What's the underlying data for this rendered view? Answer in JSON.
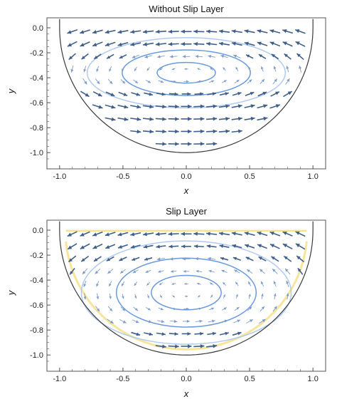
{
  "chart_data": [
    {
      "type": "vector-field",
      "title": "Without Slip Layer",
      "xlabel": "x",
      "ylabel": "y",
      "xlim": [
        -1.1,
        1.1
      ],
      "ylim": [
        -1.13,
        0.08
      ],
      "xticks": [
        -1.0,
        -0.5,
        0.0,
        0.5,
        1.0
      ],
      "xtick_labels": [
        "-1.0",
        "-0.5",
        "0.0",
        "0.5",
        "1.0"
      ],
      "yticks": [
        0.0,
        -0.2,
        -0.4,
        -0.6,
        -0.8,
        -1.0
      ],
      "ytick_labels": [
        "0.0",
        "-0.2",
        "-0.4",
        "-0.6",
        "-0.8",
        "-1.0"
      ],
      "boundary": "semicircle x^2 + y^2 = 1, y <= 0",
      "vortex_center": [
        0.0,
        -0.36
      ],
      "streamlines": [
        0.25,
        0.55,
        0.85
      ],
      "slip_layer": false
    },
    {
      "type": "vector-field",
      "title": "Slip Layer",
      "xlabel": "x",
      "ylabel": "y",
      "xlim": [
        -1.1,
        1.1
      ],
      "ylim": [
        -1.13,
        0.08
      ],
      "xticks": [
        -1.0,
        -0.5,
        0.0,
        0.5,
        1.0
      ],
      "xtick_labels": [
        "-1.0",
        "-0.5",
        "0.0",
        "0.5",
        "1.0"
      ],
      "yticks": [
        0.0,
        -0.2,
        -0.4,
        -0.6,
        -0.8,
        -1.0
      ],
      "ytick_labels": [
        "0.0",
        "-0.2",
        "-0.4",
        "-0.6",
        "-0.8",
        "-1.0"
      ],
      "boundary": "semicircle x^2 + y^2 = 1, y <= 0",
      "vortex_center": [
        0.0,
        -0.5
      ],
      "streamlines": [
        0.3,
        0.6,
        0.9
      ],
      "slip_layer": true
    }
  ],
  "colors": {
    "arrow_dark": "#3f5f8a",
    "arrow_light": "#7d9cc8",
    "streamline": "#5a8fd9",
    "streamline_light": "#a7c4ee",
    "boundary": "#3a3a3a",
    "slip": "#f2cc3a",
    "frame": "#555555"
  }
}
